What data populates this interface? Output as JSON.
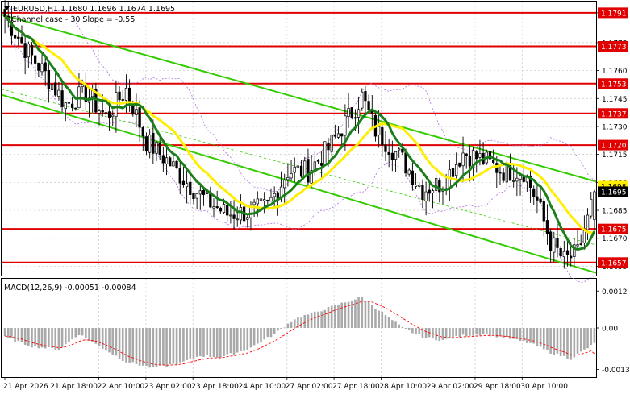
{
  "header": {
    "symbol_line": "EURUSD,H1  1.1680 1.1696 1.1674 1.1695",
    "indicator_line": "Channel case - 30 Slope = -0.55",
    "menu_arrow": "triangle-down-icon"
  },
  "macd": {
    "label": "MACD(12,26,9) -0.00051 -0.00084"
  },
  "colors": {
    "bull": "#ffffff",
    "bear": "#000000",
    "ma_fast": "#1a7f1a",
    "ma_slow": "#ffee00",
    "channel": "#33cc00",
    "level": "#e00000",
    "bollinger": "#b070e0",
    "macd_hist": "#a9a9a9",
    "macd_signal": "#ff0000"
  },
  "chart_data": {
    "type": "candlestick",
    "symbol": "EURUSD",
    "timeframe": "H1",
    "last_ohlc": {
      "open": 1.168,
      "high": 1.1696,
      "low": 1.1674,
      "close": 1.1695
    },
    "current_price": "1.1695",
    "ylim": [
      1.165,
      1.1797
    ],
    "y_ticks": [
      "1.1791",
      "1.1775",
      "1.1760",
      "1.1745",
      "1.1730",
      "1.1715",
      "1.1700",
      "1.1685",
      "1.1670",
      "1.1655"
    ],
    "level_tags": [
      "1.1791",
      "1.1773",
      "1.1753",
      "1.1737",
      "1.1720",
      "1.1675",
      "1.1657"
    ],
    "hidden_tag": "1.1698",
    "x_labels": [
      "21 Apr 2026",
      "21 Apr 18:00",
      "22 Apr 10:00",
      "23 Apr 02:00",
      "23 Apr 18:00",
      "24 Apr 10:00",
      "27 Apr 02:00",
      "27 Apr 18:00",
      "28 Apr 10:00",
      "29 Apr 02:00",
      "29 Apr 18:00",
      "30 Apr 10:00"
    ],
    "levels": [
      1.1791,
      1.1773,
      1.1753,
      1.1737,
      1.172,
      1.1675,
      1.1657
    ],
    "close_anchors": [
      [
        0,
        1.1789
      ],
      [
        6,
        1.1772
      ],
      [
        12,
        1.1758
      ],
      [
        18,
        1.1742
      ],
      [
        24,
        1.1748
      ],
      [
        30,
        1.1735
      ],
      [
        36,
        1.175
      ],
      [
        42,
        1.1722
      ],
      [
        48,
        1.1712
      ],
      [
        54,
        1.17
      ],
      [
        60,
        1.169
      ],
      [
        66,
        1.1683
      ],
      [
        72,
        1.1684
      ],
      [
        78,
        1.1687
      ],
      [
        84,
        1.1706
      ],
      [
        90,
        1.1706
      ],
      [
        96,
        1.1718
      ],
      [
        102,
        1.1735
      ],
      [
        106,
        1.1746
      ],
      [
        110,
        1.1728
      ],
      [
        114,
        1.172
      ],
      [
        118,
        1.1712
      ],
      [
        124,
        1.1696
      ],
      [
        130,
        1.17
      ],
      [
        136,
        1.1716
      ],
      [
        142,
        1.1712
      ],
      [
        148,
        1.1706
      ],
      [
        154,
        1.1706
      ],
      [
        158,
        1.169
      ],
      [
        162,
        1.1668
      ],
      [
        166,
        1.1658
      ],
      [
        170,
        1.1662
      ],
      [
        173,
        1.168
      ],
      [
        175,
        1.1695
      ]
    ],
    "macd_ylim": [
      -0.0016,
      0.0016
    ],
    "macd_ticks": [
      "0.0012",
      "0.00",
      "-0.00135"
    ],
    "macd_anchors": [
      [
        0,
        -0.0003
      ],
      [
        8,
        -0.0006
      ],
      [
        16,
        -0.0007
      ],
      [
        22,
        -0.0002
      ],
      [
        28,
        -0.0006
      ],
      [
        36,
        -0.0011
      ],
      [
        44,
        -0.0013
      ],
      [
        52,
        -0.00115
      ],
      [
        58,
        -0.0009
      ],
      [
        64,
        -0.00095
      ],
      [
        72,
        -0.0007
      ],
      [
        80,
        -0.0002
      ],
      [
        86,
        0.0003
      ],
      [
        92,
        0.0005
      ],
      [
        100,
        0.0008
      ],
      [
        106,
        0.001
      ],
      [
        112,
        0.0005
      ],
      [
        118,
        0.0
      ],
      [
        124,
        -0.0003
      ],
      [
        130,
        -0.0004
      ],
      [
        136,
        -0.00025
      ],
      [
        142,
        -0.0002
      ],
      [
        148,
        -0.0003
      ],
      [
        156,
        -0.0005
      ],
      [
        162,
        -0.0008
      ],
      [
        168,
        -0.001
      ],
      [
        175,
        -0.00051
      ]
    ],
    "macd_signal_value": -0.00084,
    "ma_fast_period": 9,
    "ma_slow_period": 18,
    "bollinger": {
      "period": 20,
      "deviation": 2
    },
    "channel": {
      "upper": [
        [
          0,
          1.179
        ],
        [
          175,
          1.17
        ]
      ],
      "mid": [
        [
          0,
          1.175
        ],
        [
          175,
          1.1666
        ]
      ],
      "lower": [
        [
          0,
          1.1747
        ],
        [
          175,
          1.1651
        ]
      ]
    }
  }
}
